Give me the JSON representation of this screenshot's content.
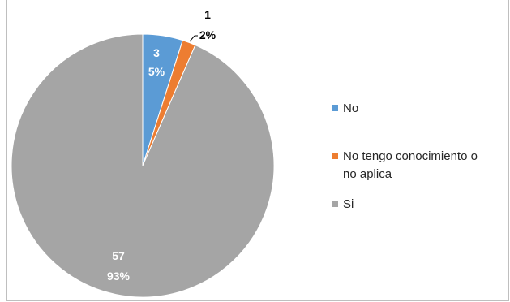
{
  "chart_data": {
    "type": "pie",
    "title": "",
    "categories": [
      "No",
      "No tengo conocimiento o no aplica",
      "Si"
    ],
    "values": [
      3,
      1,
      57
    ],
    "percent_labels": [
      "5%",
      "2%",
      "93%"
    ],
    "colors": [
      "#5b9bd5",
      "#ed7d31",
      "#a5a5a5"
    ],
    "legend": {
      "position": "right",
      "entries": [
        {
          "lines": [
            "No"
          ],
          "color": "#5b9bd5"
        },
        {
          "lines": [
            "No tengo conocimiento o",
            "no aplica"
          ],
          "color": "#ed7d31"
        },
        {
          "lines": [
            "Si"
          ],
          "color": "#a5a5a5"
        }
      ]
    }
  }
}
